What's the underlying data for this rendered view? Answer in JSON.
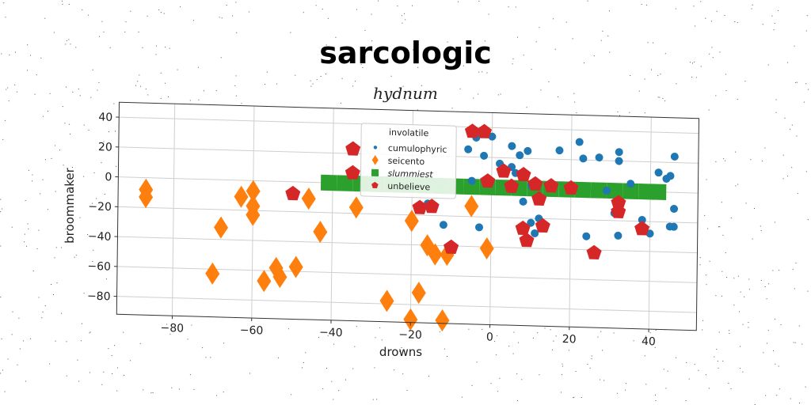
{
  "chart_data": {
    "type": "scatter",
    "title": "sarcologic",
    "subtitle": "hydnum",
    "xlabel": "drowns",
    "ylabel": "broommaker",
    "xlim": [
      -94,
      52
    ],
    "ylim": [
      -92,
      50
    ],
    "x_ticks": [
      -80,
      -60,
      -40,
      -20,
      0,
      20,
      40
    ],
    "y_ticks": [
      40,
      20,
      0,
      -20,
      -40,
      -60,
      -80
    ],
    "tick_labels": {
      "x": [
        "−80",
        "−60",
        "−40",
        "−20",
        "0",
        "20",
        "40"
      ],
      "y": [
        "40",
        "20",
        "0",
        "−20",
        "−40",
        "−60",
        "−80"
      ]
    },
    "grid": true,
    "legend": {
      "title": "involatile",
      "placement": "top-center",
      "entries": [
        "cumulophyric",
        "seicento",
        "slummiest",
        "unbelieve"
      ]
    },
    "series": [
      {
        "name": "cumulophyric",
        "marker": "circle",
        "color": "#1f77b4",
        "points": [
          [
            -4,
            33
          ],
          [
            0,
            34
          ],
          [
            -6,
            25
          ],
          [
            -2,
            21
          ],
          [
            2,
            16
          ],
          [
            5,
            28
          ],
          [
            7,
            22
          ],
          [
            9,
            25
          ],
          [
            5,
            14
          ],
          [
            6,
            10
          ],
          [
            10,
            2
          ],
          [
            8,
            -9
          ],
          [
            10,
            -23
          ],
          [
            12,
            -20
          ],
          [
            11,
            -30
          ],
          [
            5,
            -1
          ],
          [
            -3,
            -27
          ],
          [
            -12,
            -26
          ],
          [
            -16,
            -12
          ],
          [
            -5,
            4
          ],
          [
            17,
            26
          ],
          [
            22,
            32
          ],
          [
            23,
            21
          ],
          [
            27,
            22
          ],
          [
            32,
            26
          ],
          [
            32,
            20
          ],
          [
            31,
            -15
          ],
          [
            32,
            -30
          ],
          [
            24,
            -31
          ],
          [
            38,
            -19
          ],
          [
            40,
            -28
          ],
          [
            42,
            13
          ],
          [
            44,
            9
          ],
          [
            45,
            11
          ],
          [
            46,
            24
          ],
          [
            46,
            -11
          ],
          [
            46,
            -23
          ],
          [
            45,
            -23
          ],
          [
            29,
            0
          ],
          [
            35,
            5
          ]
        ]
      },
      {
        "name": "seicento",
        "marker": "diamond",
        "color": "#ff7f0e",
        "points": [
          [
            -87,
            -8
          ],
          [
            -87,
            -13
          ],
          [
            -70,
            -63
          ],
          [
            -68,
            -32
          ],
          [
            -63,
            -11
          ],
          [
            -60,
            -7
          ],
          [
            -60,
            -17
          ],
          [
            -60,
            -23
          ],
          [
            -57,
            -67
          ],
          [
            -54,
            -58
          ],
          [
            -53,
            -64
          ],
          [
            -49,
            -57
          ],
          [
            -46,
            -11
          ],
          [
            -43,
            -33
          ],
          [
            -34,
            -16
          ],
          [
            -26,
            -78
          ],
          [
            -20,
            -24
          ],
          [
            -20,
            -90
          ],
          [
            -18,
            -72
          ],
          [
            -16,
            -40
          ],
          [
            -14,
            -46
          ],
          [
            -11,
            -46
          ],
          [
            -12,
            -90
          ],
          [
            -5,
            -13
          ],
          [
            -1,
            -41
          ]
        ]
      },
      {
        "name": "slummiest",
        "marker": "square",
        "color": "#2ca02c",
        "points": [
          [
            -41,
            0
          ],
          [
            -37,
            0
          ],
          [
            -33,
            0
          ],
          [
            -29,
            0
          ],
          [
            -25,
            0
          ],
          [
            -21,
            0
          ],
          [
            -17,
            0
          ],
          [
            -13,
            0
          ],
          [
            -9,
            0
          ],
          [
            -5,
            0
          ],
          [
            -1,
            0
          ],
          [
            3,
            0
          ],
          [
            7,
            0
          ],
          [
            11,
            0
          ],
          [
            15,
            0
          ],
          [
            19,
            0
          ],
          [
            23,
            0
          ],
          [
            27,
            0
          ],
          [
            31,
            0
          ],
          [
            35,
            0
          ],
          [
            39,
            0
          ],
          [
            42,
            0
          ]
        ]
      },
      {
        "name": "unbelieve",
        "marker": "pentagon",
        "color": "#d62728",
        "points": [
          [
            -35,
            23
          ],
          [
            -35,
            7
          ],
          [
            -50,
            -8
          ],
          [
            -5,
            37
          ],
          [
            -2,
            37
          ],
          [
            -1,
            4
          ],
          [
            3,
            11
          ],
          [
            5,
            1
          ],
          [
            8,
            9
          ],
          [
            11,
            3
          ],
          [
            12,
            -7
          ],
          [
            13,
            -25
          ],
          [
            8,
            -27
          ],
          [
            9,
            -35
          ],
          [
            15,
            2
          ],
          [
            20,
            1
          ],
          [
            26,
            -42
          ],
          [
            32,
            -8
          ],
          [
            32,
            -14
          ],
          [
            38,
            -25
          ],
          [
            -18,
            -15
          ],
          [
            -15,
            -14
          ],
          [
            -10,
            -41
          ]
        ]
      }
    ]
  }
}
